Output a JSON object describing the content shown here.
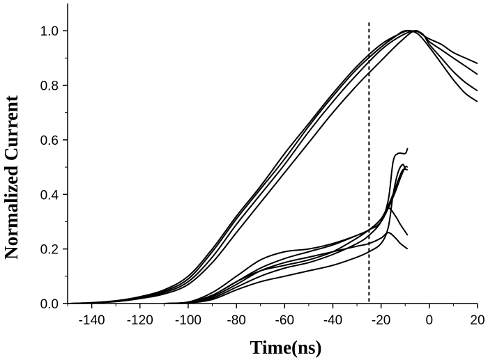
{
  "chart_data": {
    "type": "line",
    "title": "",
    "xlabel": "Time(ns)",
    "ylabel": "Normalized Current",
    "xlim": [
      -150,
      20
    ],
    "ylim": [
      0.0,
      1.1
    ],
    "x_ticks": [
      -140,
      -120,
      -100,
      -80,
      -60,
      -40,
      -20,
      0,
      20
    ],
    "x_tick_labels": [
      "-140",
      "-120",
      "-100",
      "-80",
      "-60",
      "-40",
      "-20",
      "0",
      "20"
    ],
    "y_ticks": [
      0.0,
      0.2,
      0.4,
      0.6,
      0.8,
      1.0
    ],
    "y_tick_labels": [
      "0.0",
      "0.2",
      "0.4",
      "0.6",
      "0.8",
      "1.0"
    ],
    "grid": false,
    "legend": "none",
    "reference_line": {
      "x": -25,
      "style": "dashed"
    },
    "series": [
      {
        "points": [
          [
            -150,
            0
          ],
          [
            -140,
            0.003
          ],
          [
            -130,
            0.01
          ],
          [
            -120,
            0.025
          ],
          [
            -110,
            0.05
          ],
          [
            -100,
            0.1
          ],
          [
            -90,
            0.2
          ],
          [
            -80,
            0.32
          ],
          [
            -70,
            0.43
          ],
          [
            -60,
            0.55
          ],
          [
            -50,
            0.66
          ],
          [
            -40,
            0.77
          ],
          [
            -30,
            0.87
          ],
          [
            -20,
            0.95
          ],
          [
            -12,
            0.99
          ],
          [
            -8,
            1.0
          ],
          [
            -3,
            0.99
          ],
          [
            0,
            0.95
          ],
          [
            5,
            0.9
          ],
          [
            10,
            0.85
          ],
          [
            15,
            0.81
          ],
          [
            20,
            0.78
          ]
        ]
      },
      {
        "points": [
          [
            -150,
            0
          ],
          [
            -140,
            0.003
          ],
          [
            -130,
            0.01
          ],
          [
            -120,
            0.023
          ],
          [
            -110,
            0.045
          ],
          [
            -100,
            0.09
          ],
          [
            -90,
            0.19
          ],
          [
            -80,
            0.31
          ],
          [
            -70,
            0.42
          ],
          [
            -60,
            0.53
          ],
          [
            -50,
            0.65
          ],
          [
            -40,
            0.76
          ],
          [
            -30,
            0.86
          ],
          [
            -20,
            0.94
          ],
          [
            -14,
            0.98
          ],
          [
            -10,
            1.0
          ],
          [
            -5,
            0.99
          ],
          [
            0,
            0.94
          ],
          [
            5,
            0.88
          ],
          [
            10,
            0.82
          ],
          [
            15,
            0.77
          ],
          [
            20,
            0.74
          ]
        ]
      },
      {
        "points": [
          [
            -150,
            0
          ],
          [
            -140,
            0.002
          ],
          [
            -130,
            0.008
          ],
          [
            -120,
            0.02
          ],
          [
            -110,
            0.04
          ],
          [
            -100,
            0.08
          ],
          [
            -90,
            0.17
          ],
          [
            -80,
            0.29
          ],
          [
            -70,
            0.4
          ],
          [
            -60,
            0.51
          ],
          [
            -50,
            0.63
          ],
          [
            -40,
            0.74
          ],
          [
            -30,
            0.84
          ],
          [
            -20,
            0.93
          ],
          [
            -12,
            0.98
          ],
          [
            -6,
            1.0
          ],
          [
            -2,
            0.98
          ],
          [
            0,
            0.97
          ],
          [
            5,
            0.95
          ],
          [
            10,
            0.92
          ],
          [
            15,
            0.9
          ],
          [
            20,
            0.88
          ]
        ]
      },
      {
        "points": [
          [
            -150,
            0
          ],
          [
            -140,
            0.002
          ],
          [
            -130,
            0.007
          ],
          [
            -120,
            0.018
          ],
          [
            -110,
            0.035
          ],
          [
            -100,
            0.07
          ],
          [
            -90,
            0.15
          ],
          [
            -80,
            0.26
          ],
          [
            -70,
            0.37
          ],
          [
            -60,
            0.48
          ],
          [
            -50,
            0.59
          ],
          [
            -40,
            0.7
          ],
          [
            -30,
            0.8
          ],
          [
            -20,
            0.89
          ],
          [
            -12,
            0.96
          ],
          [
            -6,
            1.0
          ],
          [
            -2,
            0.98
          ],
          [
            0,
            0.96
          ],
          [
            5,
            0.93
          ],
          [
            10,
            0.9
          ],
          [
            15,
            0.87
          ],
          [
            20,
            0.84
          ]
        ]
      },
      {
        "points": [
          [
            -110,
            0
          ],
          [
            -100,
            0.005
          ],
          [
            -90,
            0.03
          ],
          [
            -80,
            0.08
          ],
          [
            -70,
            0.13
          ],
          [
            -60,
            0.165
          ],
          [
            -50,
            0.19
          ],
          [
            -40,
            0.215
          ],
          [
            -30,
            0.25
          ],
          [
            -25,
            0.27
          ],
          [
            -20,
            0.31
          ],
          [
            -17,
            0.35
          ],
          [
            -14,
            0.32
          ],
          [
            -12,
            0.29
          ],
          [
            -9,
            0.25
          ]
        ]
      },
      {
        "points": [
          [
            -110,
            0
          ],
          [
            -100,
            0.004
          ],
          [
            -90,
            0.025
          ],
          [
            -80,
            0.07
          ],
          [
            -70,
            0.12
          ],
          [
            -60,
            0.15
          ],
          [
            -50,
            0.17
          ],
          [
            -40,
            0.19
          ],
          [
            -30,
            0.21
          ],
          [
            -25,
            0.22
          ],
          [
            -20,
            0.24
          ],
          [
            -17,
            0.26
          ],
          [
            -14,
            0.24
          ],
          [
            -12,
            0.22
          ],
          [
            -9,
            0.2
          ]
        ]
      },
      {
        "points": [
          [
            -110,
            0
          ],
          [
            -100,
            0.005
          ],
          [
            -90,
            0.04
          ],
          [
            -80,
            0.1
          ],
          [
            -70,
            0.16
          ],
          [
            -60,
            0.19
          ],
          [
            -50,
            0.2
          ],
          [
            -40,
            0.22
          ],
          [
            -30,
            0.25
          ],
          [
            -25,
            0.27
          ],
          [
            -20,
            0.3
          ],
          [
            -15,
            0.39
          ],
          [
            -12,
            0.46
          ],
          [
            -10,
            0.5
          ],
          [
            -9,
            0.5
          ]
        ]
      },
      {
        "points": [
          [
            -110,
            0
          ],
          [
            -100,
            0.003
          ],
          [
            -90,
            0.02
          ],
          [
            -80,
            0.06
          ],
          [
            -70,
            0.1
          ],
          [
            -60,
            0.13
          ],
          [
            -50,
            0.15
          ],
          [
            -40,
            0.18
          ],
          [
            -30,
            0.22
          ],
          [
            -25,
            0.25
          ],
          [
            -20,
            0.3
          ],
          [
            -17,
            0.38
          ],
          [
            -15,
            0.52
          ],
          [
            -13,
            0.55
          ],
          [
            -10,
            0.55
          ],
          [
            -9,
            0.57
          ]
        ]
      },
      {
        "points": [
          [
            -110,
            0
          ],
          [
            -100,
            0.004
          ],
          [
            -90,
            0.03
          ],
          [
            -80,
            0.08
          ],
          [
            -70,
            0.12
          ],
          [
            -60,
            0.14
          ],
          [
            -50,
            0.16
          ],
          [
            -40,
            0.19
          ],
          [
            -30,
            0.24
          ],
          [
            -25,
            0.27
          ],
          [
            -20,
            0.31
          ],
          [
            -16,
            0.38
          ],
          [
            -13,
            0.45
          ],
          [
            -11,
            0.49
          ],
          [
            -9,
            0.49
          ]
        ]
      },
      {
        "points": [
          [
            -110,
            0
          ],
          [
            -100,
            0.002
          ],
          [
            -90,
            0.015
          ],
          [
            -80,
            0.05
          ],
          [
            -70,
            0.08
          ],
          [
            -60,
            0.1
          ],
          [
            -50,
            0.12
          ],
          [
            -40,
            0.14
          ],
          [
            -30,
            0.17
          ],
          [
            -25,
            0.19
          ],
          [
            -20,
            0.22
          ],
          [
            -17,
            0.28
          ],
          [
            -15,
            0.4
          ],
          [
            -13,
            0.48
          ],
          [
            -11,
            0.51
          ],
          [
            -10,
            0.49
          ]
        ]
      }
    ]
  }
}
